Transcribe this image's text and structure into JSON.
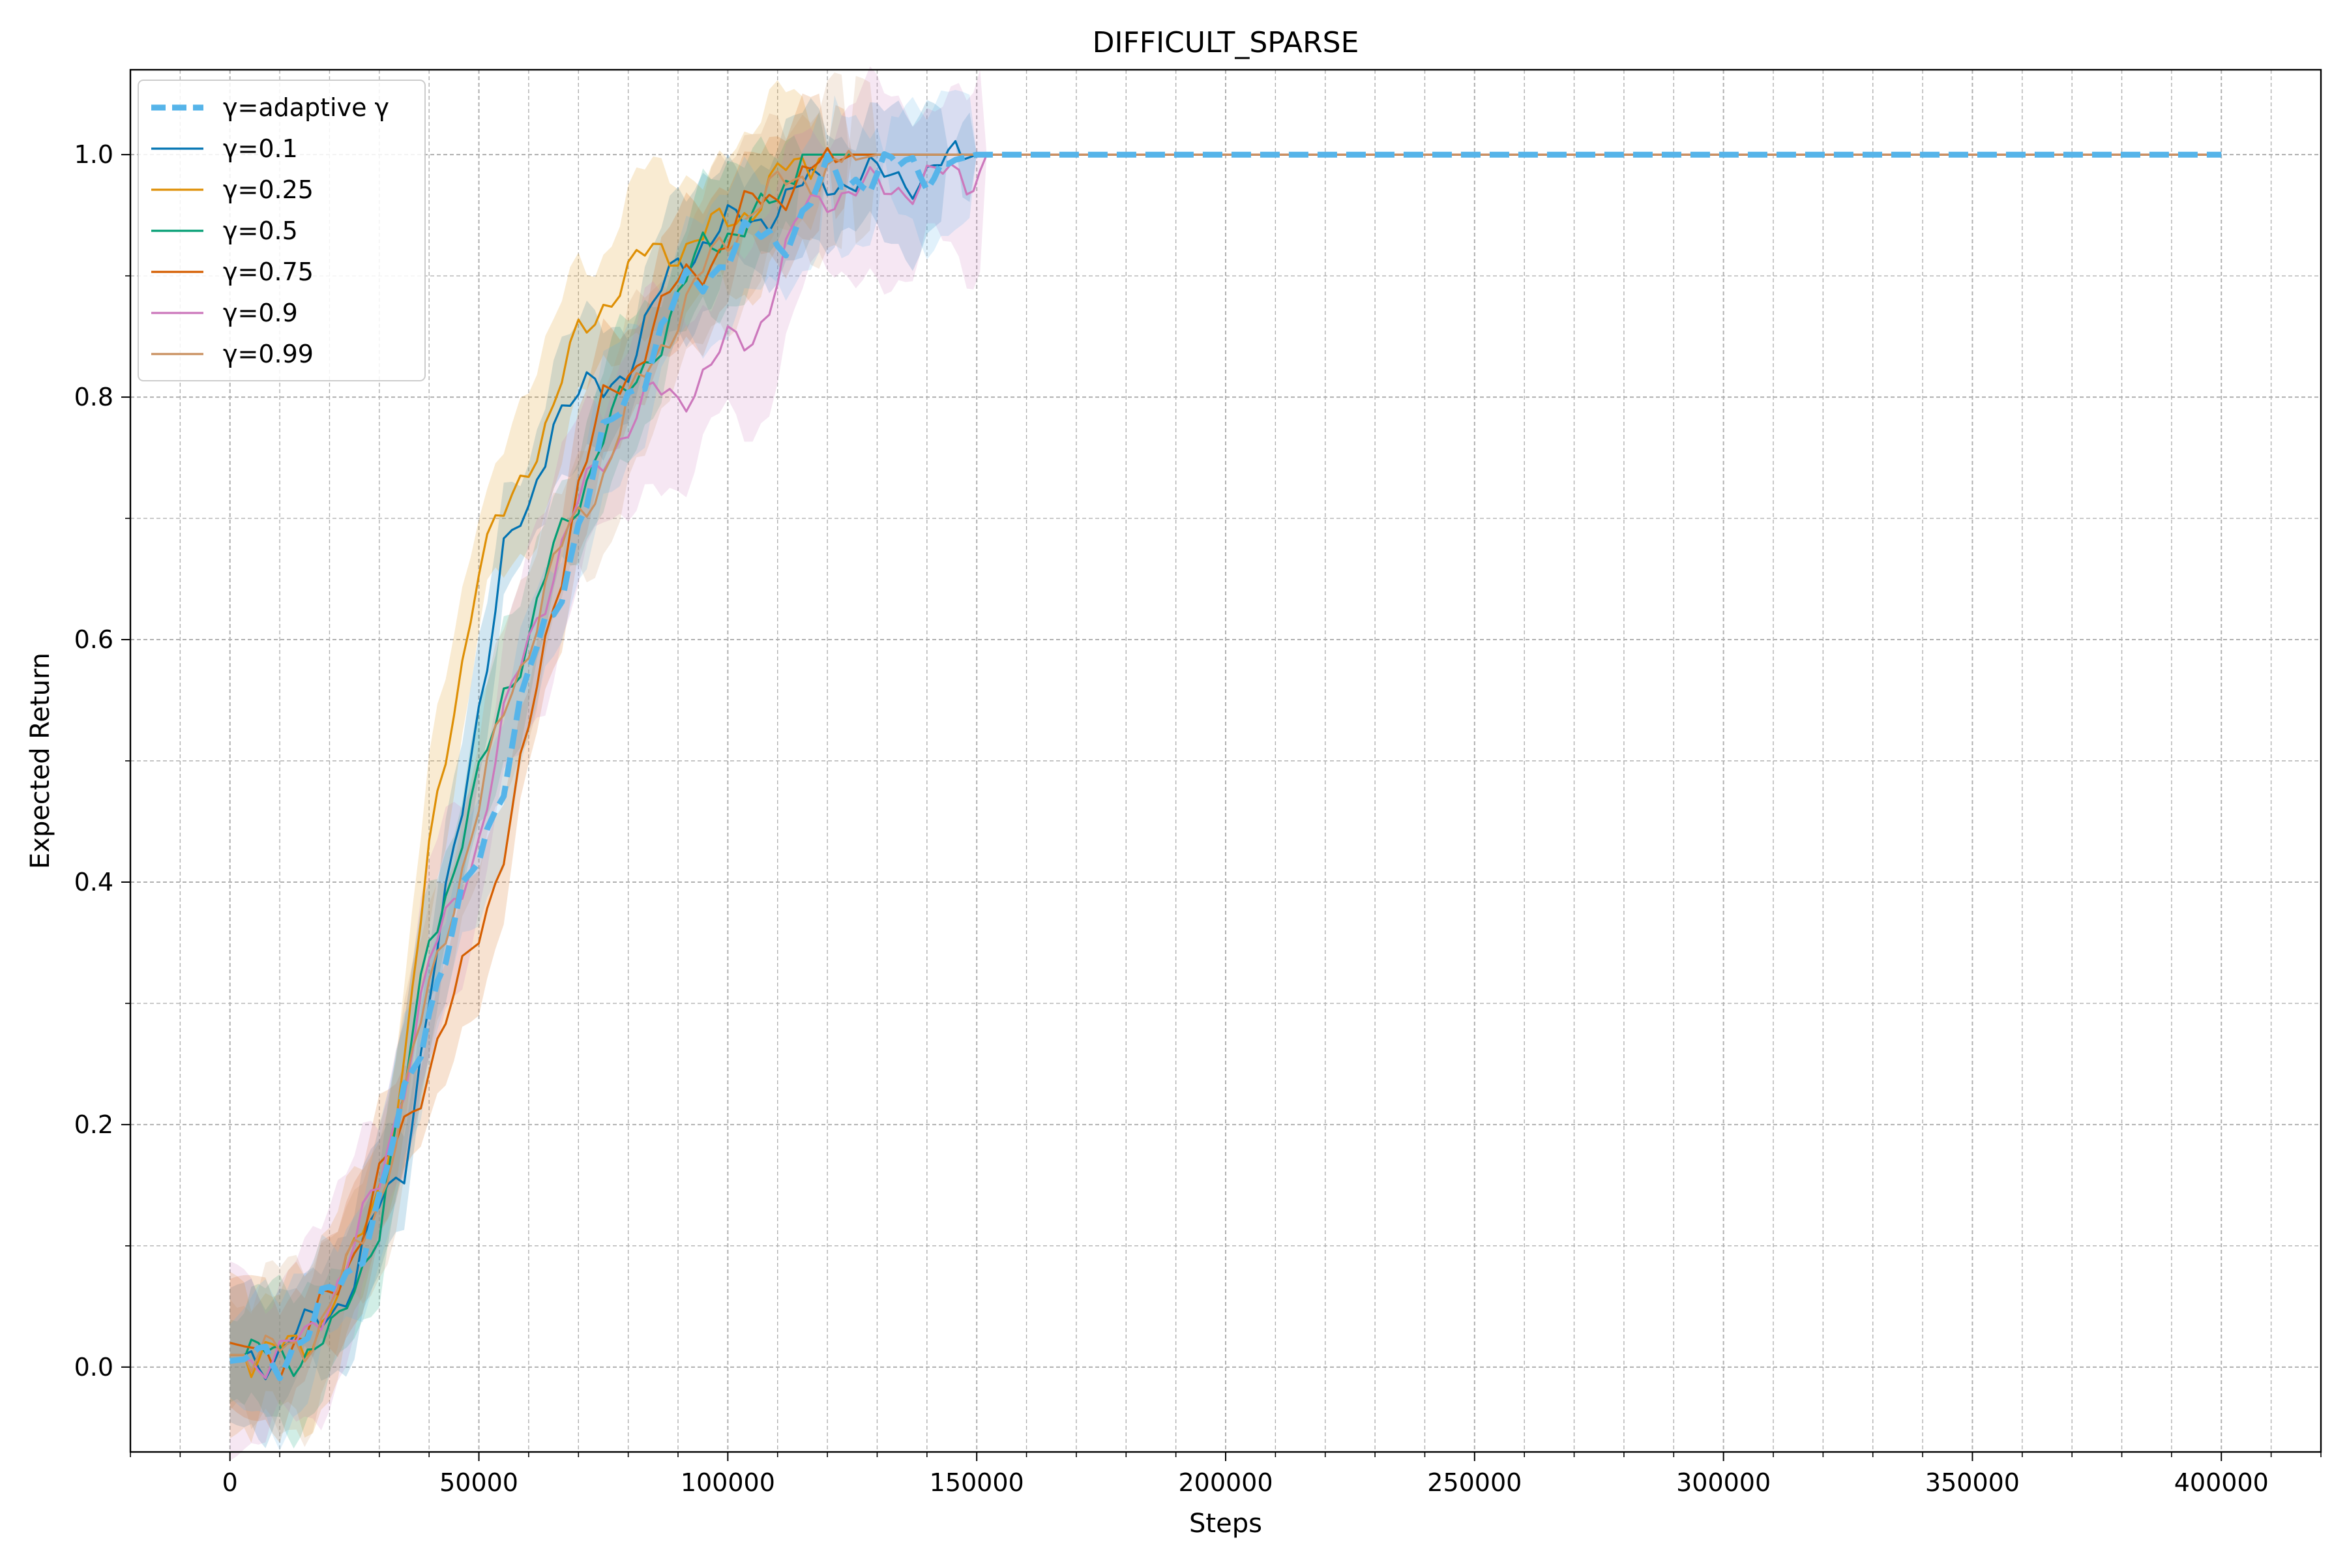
{
  "chart_data": {
    "type": "line",
    "title": "DIFFICULT_SPARSE",
    "xlabel": "Steps",
    "ylabel": "Expected Return",
    "xlim": [
      -20000,
      420000
    ],
    "ylim": [
      -0.07,
      1.07
    ],
    "x_ticks": [
      0,
      50000,
      100000,
      150000,
      200000,
      250000,
      300000,
      350000,
      400000
    ],
    "x_tick_labels": [
      "0",
      "50000",
      "100000",
      "150000",
      "200000",
      "250000",
      "300000",
      "350000",
      "400000"
    ],
    "y_ticks": [
      0.0,
      0.2,
      0.4,
      0.6,
      0.8,
      1.0
    ],
    "y_tick_labels": [
      "0.0",
      "0.2",
      "0.4",
      "0.6",
      "0.8",
      "1.0"
    ],
    "grid": true,
    "minor_grid": true,
    "legend_position": "upper-left",
    "series": [
      {
        "name": "γ=adaptive γ",
        "color": "#56b4e9",
        "dashed": true,
        "band_width": 0.05,
        "points": [
          [
            0,
            0.005
          ],
          [
            10000,
            0.01
          ],
          [
            17000,
            0.03
          ],
          [
            20000,
            0.06
          ],
          [
            25000,
            0.09
          ],
          [
            30000,
            0.13
          ],
          [
            35000,
            0.22
          ],
          [
            40000,
            0.3
          ],
          [
            45000,
            0.36
          ],
          [
            50000,
            0.42
          ],
          [
            55000,
            0.49
          ],
          [
            60000,
            0.57
          ],
          [
            65000,
            0.62
          ],
          [
            70000,
            0.7
          ],
          [
            75000,
            0.76
          ],
          [
            80000,
            0.8
          ],
          [
            85000,
            0.84
          ],
          [
            90000,
            0.88
          ],
          [
            95000,
            0.9
          ],
          [
            100000,
            0.92
          ],
          [
            105000,
            0.93
          ],
          [
            110000,
            0.93
          ],
          [
            115000,
            0.95
          ],
          [
            120000,
            0.98
          ],
          [
            130000,
            0.985
          ],
          [
            140000,
            0.99
          ],
          [
            150000,
            1.0
          ],
          [
            400000,
            1.0
          ]
        ]
      },
      {
        "name": "γ=0.1",
        "color": "#0173b2",
        "dashed": false,
        "band_width": 0.05,
        "points": [
          [
            0,
            0.01
          ],
          [
            10000,
            0.01
          ],
          [
            15000,
            0.03
          ],
          [
            20000,
            0.05
          ],
          [
            25000,
            0.07
          ],
          [
            30000,
            0.13
          ],
          [
            35000,
            0.17
          ],
          [
            40000,
            0.3
          ],
          [
            45000,
            0.42
          ],
          [
            50000,
            0.55
          ],
          [
            55000,
            0.67
          ],
          [
            60000,
            0.7
          ],
          [
            65000,
            0.79
          ],
          [
            70000,
            0.8
          ],
          [
            75000,
            0.805
          ],
          [
            80000,
            0.83
          ],
          [
            85000,
            0.87
          ],
          [
            90000,
            0.91
          ],
          [
            95000,
            0.93
          ],
          [
            100000,
            0.94
          ],
          [
            105000,
            0.945
          ],
          [
            110000,
            0.96
          ],
          [
            115000,
            0.97
          ],
          [
            120000,
            0.98
          ],
          [
            130000,
            0.98
          ],
          [
            140000,
            0.985
          ],
          [
            150000,
            1.0
          ],
          [
            400000,
            1.0
          ]
        ]
      },
      {
        "name": "γ=0.25",
        "color": "#de8f05",
        "dashed": false,
        "band_width": 0.06,
        "points": [
          [
            0,
            0.01
          ],
          [
            10000,
            0.01
          ],
          [
            15000,
            0.02
          ],
          [
            20000,
            0.05
          ],
          [
            25000,
            0.09
          ],
          [
            30000,
            0.15
          ],
          [
            35000,
            0.25
          ],
          [
            40000,
            0.42
          ],
          [
            45000,
            0.55
          ],
          [
            50000,
            0.66
          ],
          [
            55000,
            0.7
          ],
          [
            60000,
            0.75
          ],
          [
            65000,
            0.79
          ],
          [
            70000,
            0.85
          ],
          [
            75000,
            0.88
          ],
          [
            80000,
            0.9
          ],
          [
            85000,
            0.92
          ],
          [
            90000,
            0.925
          ],
          [
            95000,
            0.93
          ],
          [
            100000,
            0.945
          ],
          [
            105000,
            0.96
          ],
          [
            110000,
            0.98
          ],
          [
            115000,
            0.99
          ],
          [
            120000,
            1.0
          ],
          [
            400000,
            1.0
          ]
        ]
      },
      {
        "name": "γ=0.5",
        "color": "#029e73",
        "dashed": false,
        "band_width": 0.05,
        "points": [
          [
            0,
            0.005
          ],
          [
            10000,
            0.01
          ],
          [
            17000,
            0.015
          ],
          [
            22000,
            0.03
          ],
          [
            25000,
            0.07
          ],
          [
            30000,
            0.12
          ],
          [
            35000,
            0.22
          ],
          [
            40000,
            0.36
          ],
          [
            45000,
            0.41
          ],
          [
            50000,
            0.48
          ],
          [
            55000,
            0.56
          ],
          [
            60000,
            0.6
          ],
          [
            65000,
            0.67
          ],
          [
            70000,
            0.72
          ],
          [
            75000,
            0.77
          ],
          [
            80000,
            0.8
          ],
          [
            85000,
            0.84
          ],
          [
            90000,
            0.88
          ],
          [
            95000,
            0.92
          ],
          [
            100000,
            0.94
          ],
          [
            105000,
            0.945
          ],
          [
            110000,
            0.96
          ],
          [
            115000,
            1.0
          ],
          [
            400000,
            1.0
          ]
        ]
      },
      {
        "name": "γ=0.75",
        "color": "#d55e00",
        "dashed": false,
        "band_width": 0.05,
        "points": [
          [
            0,
            0.02
          ],
          [
            10000,
            0.01
          ],
          [
            15000,
            0.02
          ],
          [
            20000,
            0.06
          ],
          [
            25000,
            0.1
          ],
          [
            30000,
            0.15
          ],
          [
            35000,
            0.2
          ],
          [
            40000,
            0.25
          ],
          [
            45000,
            0.3
          ],
          [
            50000,
            0.36
          ],
          [
            55000,
            0.43
          ],
          [
            60000,
            0.52
          ],
          [
            65000,
            0.63
          ],
          [
            70000,
            0.73
          ],
          [
            75000,
            0.79
          ],
          [
            80000,
            0.82
          ],
          [
            85000,
            0.86
          ],
          [
            90000,
            0.89
          ],
          [
            95000,
            0.91
          ],
          [
            100000,
            0.93
          ],
          [
            105000,
            0.96
          ],
          [
            110000,
            0.97
          ],
          [
            115000,
            0.98
          ],
          [
            120000,
            0.99
          ],
          [
            125000,
            1.0
          ],
          [
            400000,
            1.0
          ]
        ]
      },
      {
        "name": "γ=0.9",
        "color": "#cc78bc",
        "dashed": false,
        "band_width": 0.07,
        "points": [
          [
            0,
            0.005
          ],
          [
            10000,
            0.01
          ],
          [
            15000,
            0.02
          ],
          [
            20000,
            0.06
          ],
          [
            25000,
            0.1
          ],
          [
            30000,
            0.15
          ],
          [
            35000,
            0.24
          ],
          [
            40000,
            0.33
          ],
          [
            45000,
            0.38
          ],
          [
            50000,
            0.44
          ],
          [
            55000,
            0.53
          ],
          [
            60000,
            0.6
          ],
          [
            65000,
            0.66
          ],
          [
            70000,
            0.71
          ],
          [
            75000,
            0.75
          ],
          [
            80000,
            0.78
          ],
          [
            85000,
            0.8
          ],
          [
            90000,
            0.8
          ],
          [
            95000,
            0.82
          ],
          [
            100000,
            0.84
          ],
          [
            105000,
            0.85
          ],
          [
            110000,
            0.9
          ],
          [
            115000,
            0.95
          ],
          [
            120000,
            0.97
          ],
          [
            130000,
            0.97
          ],
          [
            140000,
            0.98
          ],
          [
            148000,
            0.98
          ],
          [
            152000,
            1.0
          ],
          [
            400000,
            1.0
          ]
        ]
      },
      {
        "name": "γ=0.99",
        "color": "#ca9161",
        "dashed": false,
        "band_width": 0.06,
        "points": [
          [
            0,
            0.01
          ],
          [
            10000,
            0.01
          ],
          [
            15000,
            0.02
          ],
          [
            20000,
            0.05
          ],
          [
            25000,
            0.09
          ],
          [
            30000,
            0.14
          ],
          [
            35000,
            0.22
          ],
          [
            40000,
            0.31
          ],
          [
            45000,
            0.39
          ],
          [
            50000,
            0.46
          ],
          [
            55000,
            0.54
          ],
          [
            60000,
            0.6
          ],
          [
            65000,
            0.66
          ],
          [
            70000,
            0.7
          ],
          [
            75000,
            0.74
          ],
          [
            80000,
            0.79
          ],
          [
            85000,
            0.83
          ],
          [
            90000,
            0.87
          ],
          [
            95000,
            0.9
          ],
          [
            100000,
            0.93
          ],
          [
            105000,
            0.96
          ],
          [
            110000,
            0.97
          ],
          [
            115000,
            0.98
          ],
          [
            120000,
            0.99
          ],
          [
            130000,
            1.0
          ],
          [
            400000,
            1.0
          ]
        ]
      }
    ]
  }
}
